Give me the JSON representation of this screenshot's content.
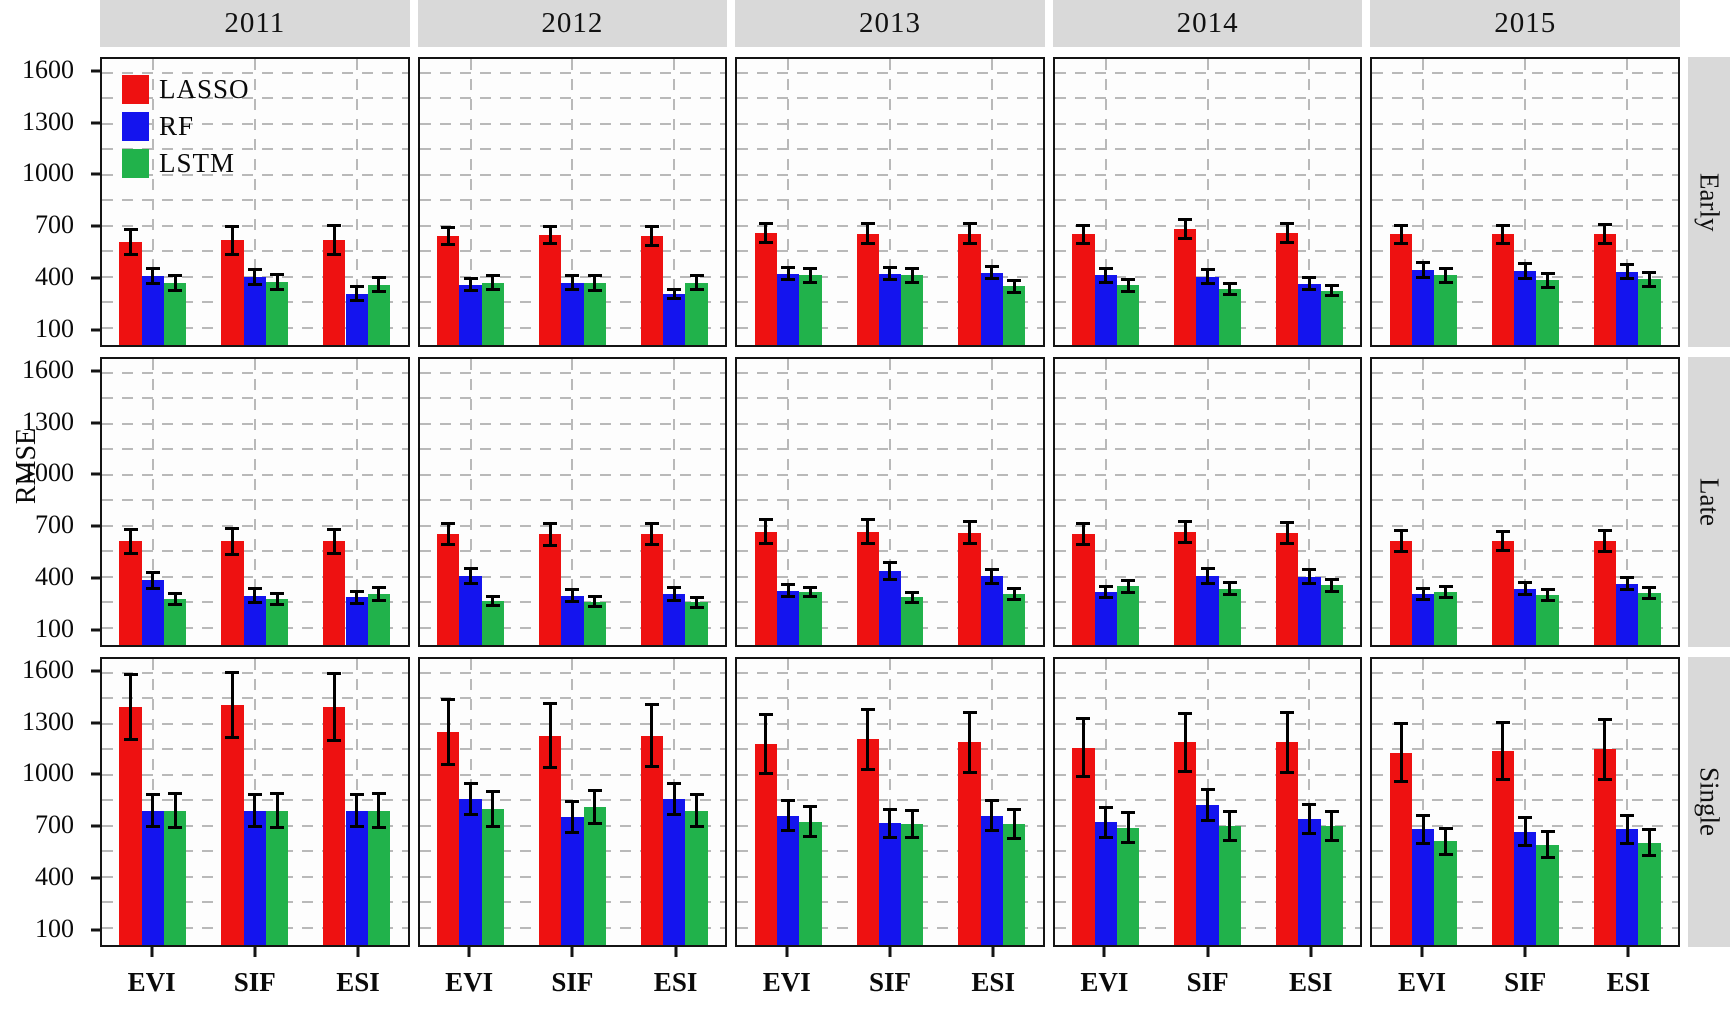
{
  "chart_data": {
    "type": "bar",
    "title": "",
    "ylabel": "RMSE",
    "legend_position": "top-left panel inside",
    "grid": "dashed gray, major and minor",
    "ylim": [
      0,
      1680
    ],
    "y_ticks": [
      100,
      400,
      700,
      1000,
      1300,
      1600
    ],
    "y_minor_ticks": [
      250,
      550,
      850,
      1150,
      1450
    ],
    "col_facets": [
      "2011",
      "2012",
      "2013",
      "2014",
      "2015"
    ],
    "row_facets": [
      "Early",
      "Late",
      "Single"
    ],
    "categories": [
      "EVI",
      "SIF",
      "ESI"
    ],
    "series": [
      {
        "name": "LASSO",
        "color": "#ee1111"
      },
      {
        "name": "RF",
        "color": "#1414ee"
      },
      {
        "name": "LSTM",
        "color": "#21b24b"
      }
    ],
    "panels": [
      {
        "row": "Early",
        "col": "2011",
        "values": [
          [
            605,
            405,
            365
          ],
          [
            615,
            400,
            370
          ],
          [
            615,
            300,
            355
          ]
        ],
        "errors": [
          [
            85,
            55,
            55
          ],
          [
            90,
            55,
            55
          ],
          [
            95,
            50,
            50
          ]
        ]
      },
      {
        "row": "Early",
        "col": "2012",
        "values": [
          [
            640,
            355,
            365
          ],
          [
            645,
            365,
            365
          ],
          [
            640,
            300,
            365
          ]
        ],
        "errors": [
          [
            60,
            45,
            50
          ],
          [
            60,
            50,
            55
          ],
          [
            65,
            35,
            50
          ]
        ]
      },
      {
        "row": "Early",
        "col": "2013",
        "values": [
          [
            660,
            420,
            410
          ],
          [
            655,
            420,
            410
          ],
          [
            655,
            425,
            345
          ]
        ],
        "errors": [
          [
            65,
            45,
            50
          ],
          [
            65,
            45,
            50
          ],
          [
            70,
            45,
            45
          ]
        ]
      },
      {
        "row": "Early",
        "col": "2014",
        "values": [
          [
            650,
            410,
            350
          ],
          [
            680,
            400,
            330
          ],
          [
            660,
            360,
            320
          ]
        ],
        "errors": [
          [
            60,
            50,
            45
          ],
          [
            65,
            50,
            40
          ],
          [
            65,
            45,
            40
          ]
        ]
      },
      {
        "row": "Early",
        "col": "2015",
        "values": [
          [
            650,
            440,
            410
          ],
          [
            650,
            435,
            380
          ],
          [
            650,
            430,
            385
          ]
        ],
        "errors": [
          [
            60,
            55,
            50
          ],
          [
            60,
            55,
            50
          ],
          [
            65,
            50,
            50
          ]
        ]
      },
      {
        "row": "Late",
        "col": "2011",
        "values": [
          [
            610,
            380,
            270
          ],
          [
            610,
            290,
            270
          ],
          [
            610,
            280,
            300
          ]
        ],
        "errors": [
          [
            80,
            55,
            40
          ],
          [
            85,
            50,
            40
          ],
          [
            80,
            45,
            45
          ]
        ]
      },
      {
        "row": "Late",
        "col": "2012",
        "values": [
          [
            650,
            405,
            260
          ],
          [
            650,
            290,
            255
          ],
          [
            650,
            300,
            250
          ]
        ],
        "errors": [
          [
            70,
            55,
            35
          ],
          [
            75,
            45,
            40
          ],
          [
            70,
            45,
            40
          ]
        ]
      },
      {
        "row": "Late",
        "col": "2013",
        "values": [
          [
            665,
            320,
            310
          ],
          [
            665,
            435,
            280
          ],
          [
            660,
            405,
            300
          ]
        ],
        "errors": [
          [
            80,
            45,
            35
          ],
          [
            80,
            60,
            40
          ],
          [
            75,
            50,
            40
          ]
        ]
      },
      {
        "row": "Late",
        "col": "2014",
        "values": [
          [
            650,
            310,
            345
          ],
          [
            665,
            405,
            330
          ],
          [
            660,
            400,
            350
          ]
        ],
        "errors": [
          [
            70,
            40,
            45
          ],
          [
            70,
            55,
            45
          ],
          [
            70,
            50,
            45
          ]
        ]
      },
      {
        "row": "Late",
        "col": "2015",
        "values": [
          [
            610,
            300,
            310
          ],
          [
            610,
            330,
            295
          ],
          [
            610,
            360,
            305
          ]
        ],
        "errors": [
          [
            70,
            40,
            40
          ],
          [
            65,
            45,
            40
          ],
          [
            70,
            45,
            40
          ]
        ]
      },
      {
        "row": "Single",
        "col": "2011",
        "values": [
          [
            1400,
            790,
            790
          ],
          [
            1410,
            790,
            790
          ],
          [
            1400,
            790,
            790
          ]
        ],
        "errors": [
          [
            200,
            105,
            110
          ],
          [
            200,
            105,
            110
          ],
          [
            205,
            105,
            110
          ]
        ]
      },
      {
        "row": "Single",
        "col": "2012",
        "values": [
          [
            1250,
            860,
            800
          ],
          [
            1230,
            750,
            810
          ],
          [
            1230,
            860,
            790
          ]
        ],
        "errors": [
          [
            200,
            100,
            110
          ],
          [
            195,
            100,
            105
          ],
          [
            190,
            100,
            105
          ]
        ]
      },
      {
        "row": "Single",
        "col": "2013",
        "values": [
          [
            1180,
            760,
            725
          ],
          [
            1210,
            715,
            710
          ],
          [
            1190,
            760,
            710
          ]
        ],
        "errors": [
          [
            180,
            95,
            95
          ],
          [
            185,
            90,
            90
          ],
          [
            185,
            95,
            95
          ]
        ]
      },
      {
        "row": "Single",
        "col": "2014",
        "values": [
          [
            1160,
            720,
            690
          ],
          [
            1190,
            820,
            700
          ],
          [
            1190,
            740,
            700
          ]
        ],
        "errors": [
          [
            180,
            95,
            95
          ],
          [
            180,
            100,
            95
          ],
          [
            185,
            95,
            95
          ]
        ]
      },
      {
        "row": "Single",
        "col": "2015",
        "values": [
          [
            1130,
            680,
            610
          ],
          [
            1140,
            665,
            590
          ],
          [
            1150,
            680,
            600
          ]
        ],
        "errors": [
          [
            180,
            90,
            85
          ],
          [
            175,
            90,
            85
          ],
          [
            185,
            90,
            85
          ]
        ]
      }
    ]
  }
}
